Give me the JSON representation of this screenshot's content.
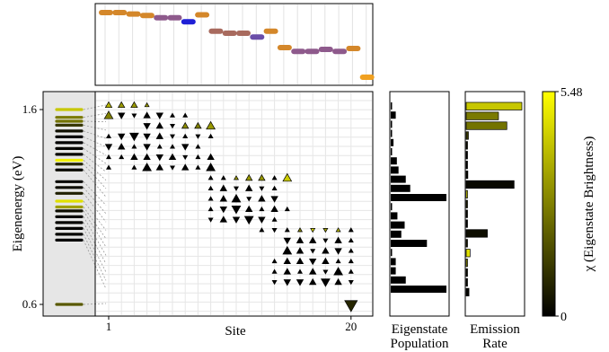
{
  "chart_data": {
    "type": "composite",
    "colorbar": {
      "label": "χ (Eigenstate Brightness)",
      "min_label": "0",
      "max_label": "5.48",
      "range": [
        0,
        5.48
      ],
      "colors": [
        "#000000",
        "#ffff00"
      ]
    },
    "top_panel": {
      "description_type": "positions",
      "sites": 20,
      "segments": [
        {
          "site": 1,
          "level": 0.0,
          "color": "#d4872a"
        },
        {
          "site": 2,
          "level": 0.0,
          "color": "#d4872a"
        },
        {
          "site": 3,
          "level": 0.05,
          "color": "#d4872a"
        },
        {
          "site": 4,
          "level": 0.1,
          "color": "#d4872a"
        },
        {
          "site": 5,
          "level": 0.18,
          "color": "#8e5a8c"
        },
        {
          "site": 6,
          "level": 0.18,
          "color": "#8e5a8c"
        },
        {
          "site": 7,
          "level": 0.32,
          "color": "#1f1fd6"
        },
        {
          "site": 8,
          "level": 0.08,
          "color": "#d4872a"
        },
        {
          "site": 9,
          "level": 0.65,
          "color": "#a86a5e"
        },
        {
          "site": 10,
          "level": 0.72,
          "color": "#a86a5e"
        },
        {
          "site": 11,
          "level": 0.72,
          "color": "#a86a5e"
        },
        {
          "site": 12,
          "level": 0.85,
          "color": "#6a4da8"
        },
        {
          "site": 13,
          "level": 0.65,
          "color": "#d4872a"
        },
        {
          "site": 14,
          "level": 1.22,
          "color": "#d4872a"
        },
        {
          "site": 15,
          "level": 1.35,
          "color": "#8e5a8c"
        },
        {
          "site": 16,
          "level": 1.35,
          "color": "#8e5a8c"
        },
        {
          "site": 17,
          "level": 1.28,
          "color": "#8e5a8c"
        },
        {
          "site": 18,
          "level": 1.35,
          "color": "#8e5a8c"
        },
        {
          "site": 19,
          "level": 1.25,
          "color": "#d4872a"
        },
        {
          "site": 20,
          "level": 2.25,
          "color": "#f0a020"
        }
      ]
    },
    "main_panel": {
      "xlabel": "Site",
      "ylabel": "Eigenenergy (eV)",
      "xticks": [
        1,
        20
      ],
      "yticks": [
        0.6,
        1.6
      ],
      "ylim": [
        0.55,
        1.67
      ],
      "levels": [
        {
          "e": 1.6,
          "chi": 0.78
        },
        {
          "e": 1.56,
          "chi": 0.48
        },
        {
          "e": 1.54,
          "chi": 0.45
        },
        {
          "e": 1.52,
          "chi": 0.22
        },
        {
          "e": 1.49,
          "chi": 0.06
        },
        {
          "e": 1.46,
          "chi": 0.0
        },
        {
          "e": 1.43,
          "chi": 0.0
        },
        {
          "e": 1.4,
          "chi": 0.02
        },
        {
          "e": 1.37,
          "chi": 0.03
        },
        {
          "e": 1.34,
          "chi": 0.95
        },
        {
          "e": 1.32,
          "chi": 0.15
        },
        {
          "e": 1.29,
          "chi": 0.03
        },
        {
          "e": 1.23,
          "chi": 0.02
        },
        {
          "e": 1.2,
          "chi": 0.05
        },
        {
          "e": 1.17,
          "chi": 0.12
        },
        {
          "e": 1.13,
          "chi": 0.88
        },
        {
          "e": 1.1,
          "chi": 0.62
        },
        {
          "e": 1.08,
          "chi": 0.05
        },
        {
          "e": 1.05,
          "chi": 0.03
        },
        {
          "e": 1.02,
          "chi": 0.02
        },
        {
          "e": 0.99,
          "chi": 0.01
        },
        {
          "e": 0.96,
          "chi": 0.02
        },
        {
          "e": 0.93,
          "chi": 0.0
        },
        {
          "e": 0.6,
          "chi": 0.35
        }
      ],
      "amplitudes": [
        {
          "row": 0,
          "sites": [
            [
              1,
              2,
              1,
              0.7
            ],
            [
              2,
              2,
              1,
              0.6
            ],
            [
              3,
              2,
              1,
              0.6
            ],
            [
              4,
              1,
              1,
              0.6
            ]
          ]
        },
        {
          "row": 1,
          "sites": [
            [
              1,
              3,
              1,
              0.5
            ],
            [
              2,
              2,
              -1,
              0
            ],
            [
              3,
              1,
              -1,
              0
            ],
            [
              4,
              2,
              1,
              0
            ],
            [
              5,
              2,
              -1,
              0
            ],
            [
              6,
              1,
              1,
              0
            ],
            [
              7,
              1,
              1,
              0
            ]
          ]
        },
        {
          "row": 2,
          "sites": [
            [
              4,
              2,
              -1,
              0
            ],
            [
              5,
              2,
              1,
              0
            ],
            [
              6,
              1,
              -1,
              0
            ],
            [
              7,
              2,
              1,
              0.55
            ],
            [
              8,
              2,
              1,
              0.5
            ],
            [
              9,
              3,
              1,
              0.6
            ]
          ]
        },
        {
          "row": 3,
          "sites": [
            [
              1,
              1,
              1,
              0
            ],
            [
              2,
              2,
              -1,
              0
            ],
            [
              3,
              3,
              -1,
              0
            ],
            [
              4,
              2,
              -1,
              0
            ],
            [
              5,
              2,
              1,
              0
            ],
            [
              6,
              1,
              -1,
              0
            ],
            [
              7,
              1,
              1,
              0
            ],
            [
              8,
              1,
              -1,
              0
            ],
            [
              9,
              1,
              1,
              0
            ]
          ]
        },
        {
          "row": 4,
          "sites": [
            [
              1,
              2,
              -1,
              0
            ],
            [
              2,
              2,
              1,
              0
            ],
            [
              3,
              1,
              1,
              0
            ],
            [
              4,
              2,
              -1,
              0
            ],
            [
              5,
              1,
              1,
              0
            ],
            [
              6,
              1,
              1,
              0
            ],
            [
              7,
              2,
              -1,
              0
            ],
            [
              8,
              1,
              1,
              0
            ]
          ]
        },
        {
          "row": 5,
          "sites": [
            [
              1,
              1,
              1,
              0
            ],
            [
              2,
              1,
              1,
              0
            ],
            [
              3,
              2,
              1,
              0
            ],
            [
              4,
              2,
              1,
              0
            ],
            [
              5,
              2,
              -1,
              0
            ],
            [
              6,
              2,
              1,
              0
            ],
            [
              7,
              1,
              -1,
              0
            ],
            [
              8,
              1,
              1,
              0
            ],
            [
              9,
              2,
              1,
              0
            ]
          ]
        },
        {
          "row": 6,
          "sites": [
            [
              1,
              1,
              1,
              0
            ],
            [
              3,
              1,
              1,
              0
            ],
            [
              4,
              3,
              1,
              0
            ],
            [
              5,
              2,
              1,
              0
            ],
            [
              6,
              1,
              -1,
              0
            ],
            [
              7,
              2,
              1,
              0
            ],
            [
              8,
              1,
              1,
              0
            ],
            [
              9,
              3,
              1,
              0
            ]
          ]
        },
        {
          "row": 7,
          "sites": [
            [
              9,
              1,
              1,
              0
            ],
            [
              10,
              1,
              1,
              0
            ],
            [
              11,
              1,
              1,
              0.6
            ],
            [
              12,
              2,
              1,
              0.6
            ],
            [
              13,
              2,
              1,
              0.6
            ],
            [
              14,
              1,
              1,
              0
            ],
            [
              15,
              3,
              1,
              0.8
            ]
          ]
        },
        {
          "row": 8,
          "sites": [
            [
              9,
              1,
              1,
              0
            ],
            [
              10,
              2,
              1,
              0
            ],
            [
              11,
              1,
              -1,
              0
            ],
            [
              12,
              2,
              1,
              0
            ],
            [
              13,
              1,
              -1,
              0
            ],
            [
              14,
              1,
              1,
              0
            ]
          ]
        },
        {
          "row": 9,
          "sites": [
            [
              9,
              1,
              1,
              0
            ],
            [
              10,
              2,
              1,
              0
            ],
            [
              11,
              3,
              1,
              0
            ],
            [
              12,
              1,
              -1,
              0
            ],
            [
              13,
              2,
              1,
              0
            ],
            [
              14,
              2,
              -1,
              0
            ]
          ]
        },
        {
          "row": 10,
          "sites": [
            [
              9,
              1,
              1,
              0
            ],
            [
              10,
              2,
              -1,
              0
            ],
            [
              11,
              3,
              -1,
              0
            ],
            [
              12,
              2,
              1,
              0
            ],
            [
              13,
              1,
              1,
              0
            ],
            [
              14,
              2,
              1,
              0
            ],
            [
              15,
              1,
              1,
              0
            ]
          ]
        },
        {
          "row": 11,
          "sites": [
            [
              9,
              1,
              -1,
              0
            ],
            [
              10,
              2,
              1,
              0
            ],
            [
              11,
              2,
              -1,
              0
            ],
            [
              12,
              3,
              -1,
              0
            ],
            [
              13,
              2,
              -1,
              0
            ],
            [
              14,
              1,
              1,
              0
            ]
          ]
        },
        {
          "row": 12,
          "sites": [
            [
              13,
              1,
              1,
              0
            ],
            [
              14,
              1,
              -1,
              0
            ],
            [
              15,
              1,
              1,
              0
            ],
            [
              16,
              1,
              1,
              0.5
            ],
            [
              17,
              1,
              -1,
              0.8
            ],
            [
              18,
              1,
              -1,
              0.6
            ],
            [
              19,
              1,
              1,
              0.7
            ],
            [
              20,
              1,
              1,
              0
            ]
          ]
        },
        {
          "row": 13,
          "sites": [
            [
              15,
              2,
              -1,
              0
            ],
            [
              16,
              2,
              1,
              0
            ],
            [
              17,
              2,
              1,
              0
            ],
            [
              18,
              1,
              -1,
              0
            ],
            [
              19,
              2,
              1,
              0
            ],
            [
              20,
              1,
              1,
              0
            ]
          ]
        },
        {
          "row": 14,
          "sites": [
            [
              15,
              3,
              1,
              0
            ],
            [
              16,
              2,
              1,
              0
            ],
            [
              17,
              1,
              -1,
              0
            ],
            [
              18,
              2,
              1,
              0
            ],
            [
              19,
              2,
              -1,
              0
            ],
            [
              20,
              1,
              1,
              0
            ]
          ]
        },
        {
          "row": 15,
          "sites": [
            [
              14,
              1,
              1,
              0
            ],
            [
              15,
              2,
              1,
              0
            ],
            [
              16,
              2,
              1,
              0
            ],
            [
              17,
              2,
              -1,
              0
            ],
            [
              18,
              2,
              1,
              0
            ],
            [
              19,
              1,
              1,
              0
            ],
            [
              20,
              1,
              1,
              0
            ]
          ]
        },
        {
          "row": 16,
          "sites": [
            [
              14,
              1,
              1,
              0
            ],
            [
              15,
              2,
              1,
              0
            ],
            [
              16,
              1,
              1,
              0
            ],
            [
              17,
              2,
              1,
              0
            ],
            [
              18,
              1,
              -1,
              0
            ],
            [
              19,
              3,
              1,
              0
            ],
            [
              20,
              1,
              1,
              0
            ]
          ]
        },
        {
          "row": 17,
          "sites": [
            [
              14,
              1,
              -1,
              0
            ],
            [
              15,
              2,
              -1,
              0
            ],
            [
              16,
              2,
              -1,
              0
            ],
            [
              17,
              2,
              1,
              0
            ],
            [
              18,
              3,
              -1,
              0
            ],
            [
              19,
              2,
              1,
              0
            ],
            [
              20,
              1,
              -1,
              0
            ]
          ]
        },
        {
          "row": 18,
          "sites": [
            [
              20,
              4,
              -1,
              0.15
            ]
          ]
        }
      ]
    },
    "population_panel": {
      "xlabel_line1": "Eigenstate",
      "xlabel_line2": "Population",
      "values": [
        0.02,
        0.09,
        0.01,
        0.0,
        0.05,
        0.0,
        0.11,
        0.14,
        0.27,
        0.35,
        1.0,
        0.0,
        0.12,
        0.25,
        0.19,
        0.65,
        0.0,
        0.09,
        0.09,
        0.27,
        1.0
      ]
    },
    "emission_panel": {
      "xlabel_line1": "Emission",
      "xlabel_line2": "Rate",
      "values": [
        1.0,
        0.58,
        0.73,
        0.04,
        0.0,
        0.0,
        0.0,
        0.03,
        0.86,
        0.0,
        0.0,
        0.0,
        0.0,
        0.38,
        0.0,
        0.07,
        0.02,
        0.01,
        0.0,
        0.05
      ]
    }
  }
}
